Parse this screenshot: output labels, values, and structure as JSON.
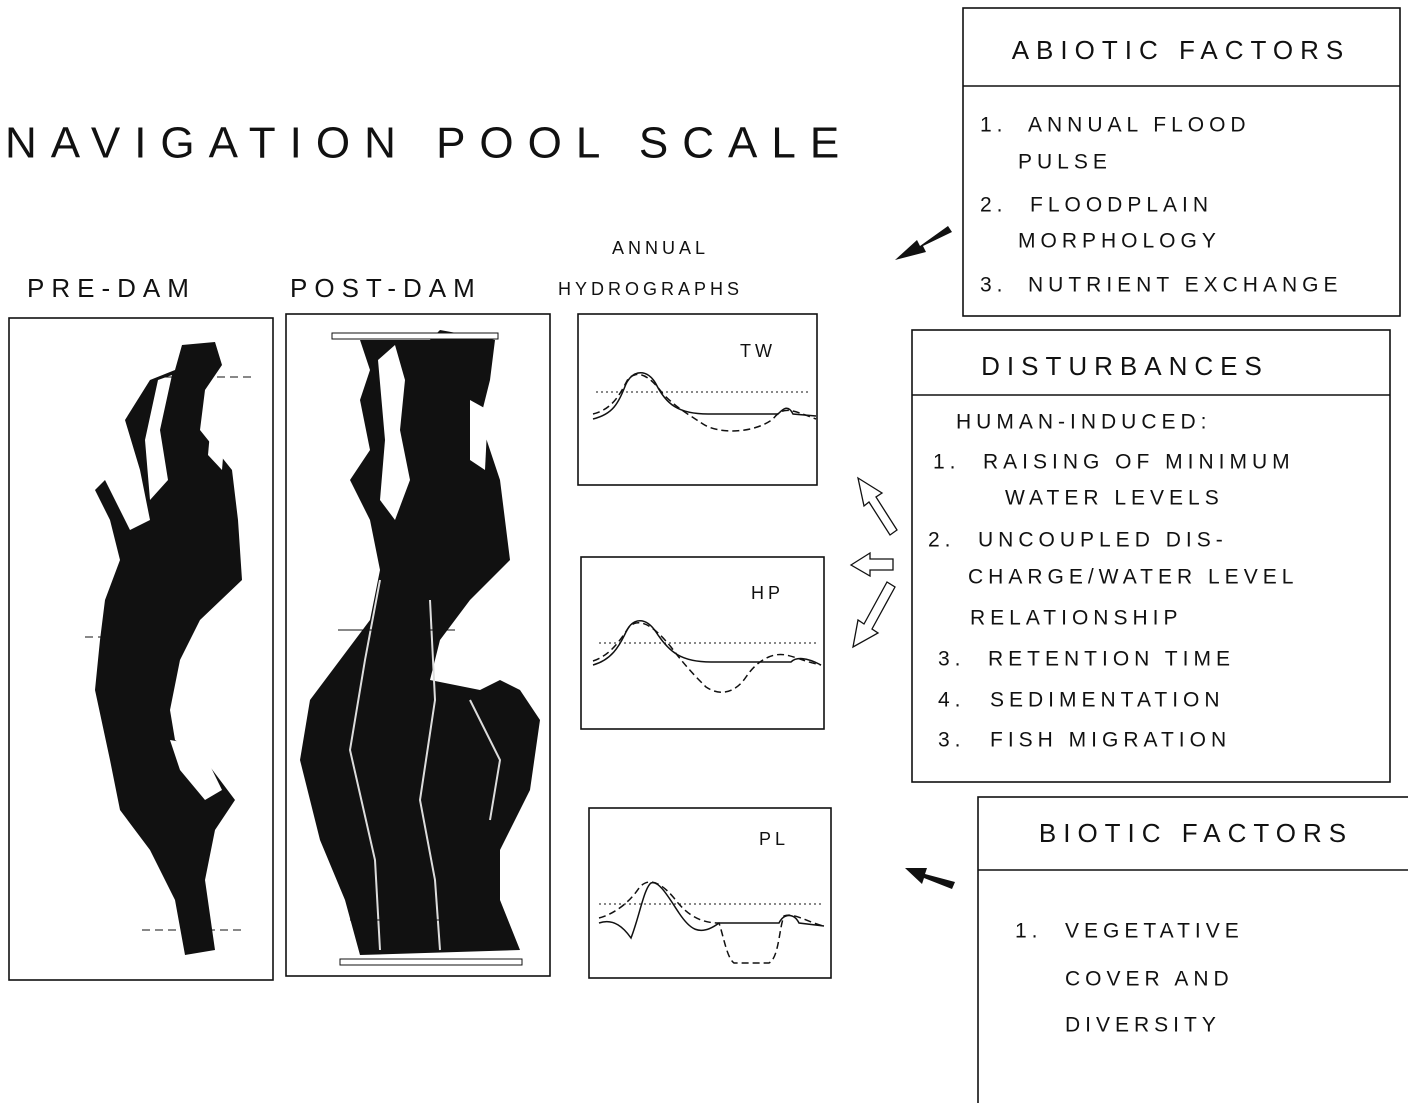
{
  "title": "NAVIGATION POOL SCALE",
  "maps": {
    "pre_dam": "PRE-DAM",
    "post_dam": "POST-DAM"
  },
  "hydrographs": {
    "heading": [
      "ANNUAL",
      "HYDROGRAPHS"
    ],
    "panels": [
      "TW",
      "HP",
      "PL"
    ]
  },
  "abiotic": {
    "title": "ABIOTIC FACTORS",
    "items": [
      {
        "number": "1.",
        "lines": [
          "ANNUAL FLOOD",
          "PULSE"
        ]
      },
      {
        "number": "2.",
        "lines": [
          "FLOODPLAIN",
          "MORPHOLOGY"
        ]
      },
      {
        "number": "3.",
        "lines": [
          "NUTRIENT EXCHANGE"
        ]
      }
    ]
  },
  "disturbances": {
    "title": "DISTURBANCES",
    "subtitle": "HUMAN-INDUCED:",
    "items": [
      {
        "number": "1.",
        "lines": [
          "RAISING OF MINIMUM",
          "WATER LEVELS"
        ]
      },
      {
        "number": "2.",
        "lines": [
          "UNCOUPLED DIS-",
          "CHARGE/WATER LEVEL",
          "RELATIONSHIP"
        ]
      },
      {
        "number": "3.",
        "lines": [
          "RETENTION TIME"
        ]
      },
      {
        "number": "4.",
        "lines": [
          "SEDIMENTATION"
        ]
      },
      {
        "number": "3.",
        "lines": [
          "FISH MIGRATION"
        ]
      }
    ]
  },
  "biotic": {
    "title": "BIOTIC FACTORS",
    "items": [
      {
        "number": "1.",
        "lines": [
          "VEGETATIVE",
          "COVER AND",
          "DIVERSITY"
        ]
      }
    ]
  }
}
